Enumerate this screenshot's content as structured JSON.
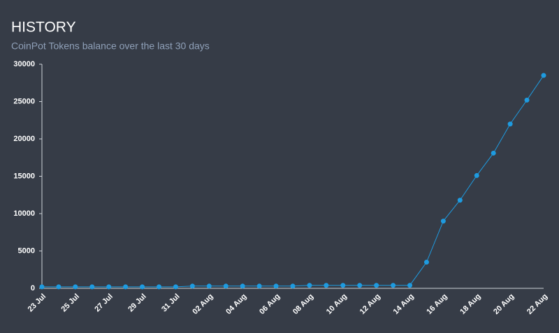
{
  "chart_data": {
    "type": "line",
    "title": "HISTORY",
    "subtitle": "CoinPot Tokens balance over the last 30 days",
    "categories": [
      "23 Jul",
      null,
      "25 Jul",
      null,
      "27 Jul",
      null,
      "29 Jul",
      null,
      "31 Jul",
      null,
      "02 Aug",
      null,
      "04 Aug",
      null,
      "06 Aug",
      null,
      "08 Aug",
      null,
      "10 Aug",
      null,
      "12 Aug",
      null,
      "14 Aug",
      null,
      "16 Aug",
      null,
      "18 Aug",
      null,
      "20 Aug",
      null,
      "22 Aug"
    ],
    "values": [
      200,
      200,
      200,
      200,
      200,
      200,
      200,
      200,
      200,
      300,
      300,
      300,
      300,
      300,
      300,
      300,
      400,
      400,
      400,
      400,
      400,
      400,
      400,
      3500,
      9000,
      11800,
      15100,
      18100,
      22000,
      25200,
      28500
    ],
    "color": "#1e9be0",
    "ylim": [
      0,
      30000
    ],
    "yticks": [
      0,
      5000,
      10000,
      15000,
      20000,
      25000,
      30000
    ]
  }
}
